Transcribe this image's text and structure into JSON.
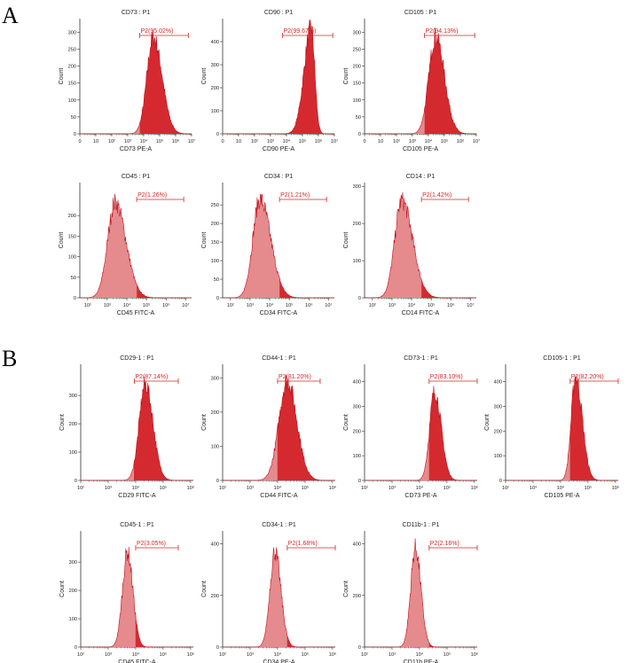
{
  "panels": [
    {
      "letter": "A"
    },
    {
      "letter": "B"
    }
  ],
  "colors": {
    "fill_ungated": "#e58a8d",
    "fill_gated": "#d42a2f",
    "outline": "#c0121a",
    "gate": "#d42828",
    "axis": "#333333"
  },
  "chart_data": [
    {
      "type": "area",
      "panel": "A",
      "title": "CD73 : P1",
      "xlabel": "CD73 PE-A",
      "ylabel": "Count",
      "xscale": "log",
      "xticks": [
        "0",
        "10",
        "10²",
        "10³",
        "10⁴",
        "10⁵",
        "10⁶",
        "10⁷"
      ],
      "xlim": [
        0,
        7
      ],
      "yticks": [
        0,
        50,
        100,
        150,
        200,
        250,
        300
      ],
      "ylim": [
        0,
        340
      ],
      "gate": {
        "label": "P2(95.02%)",
        "range": [
          3.75,
          6.8
        ]
      },
      "peak": {
        "center": 4.6,
        "height": 285,
        "width_left": 0.4,
        "width_right": 0.55
      }
    },
    {
      "type": "area",
      "panel": "A",
      "title": "CD90 : P1",
      "xlabel": "CD90 PE-A",
      "ylabel": "Count",
      "xscale": "log",
      "xticks": [
        "0",
        "10",
        "10²",
        "10³",
        "10⁴",
        "10⁵",
        "10⁶",
        "10⁷"
      ],
      "xlim": [
        0,
        7
      ],
      "yticks": [
        0,
        100,
        200,
        300,
        400
      ],
      "ylim": [
        0,
        500
      ],
      "gate": {
        "label": "P2(99.67%)",
        "range": [
          3.75,
          6.9
        ]
      },
      "peak": {
        "center": 5.55,
        "height": 460,
        "width_left": 0.45,
        "width_right": 0.22
      }
    },
    {
      "type": "area",
      "panel": "A",
      "title": "CD105 : P1",
      "xlabel": "CD105 PE-A",
      "ylabel": "Count",
      "xscale": "log",
      "xticks": [
        "0",
        "10",
        "10²",
        "10³",
        "10⁴",
        "10⁵",
        "10⁶",
        "10⁷"
      ],
      "xlim": [
        0,
        7
      ],
      "yticks": [
        0,
        50,
        100,
        150,
        200,
        250,
        300
      ],
      "ylim": [
        0,
        340
      ],
      "gate": {
        "label": "P2(94.13%)",
        "range": [
          3.75,
          6.9
        ]
      },
      "peak": {
        "center": 4.45,
        "height": 288,
        "width_left": 0.42,
        "width_right": 0.55
      }
    },
    {
      "type": "area",
      "panel": "A",
      "title": "CD45 : P1",
      "xlabel": "CD45 FITC-A",
      "ylabel": "Count",
      "xscale": "log",
      "xticks": [
        "10²",
        "10³",
        "10⁴",
        "10⁵",
        "10⁶",
        "10⁷"
      ],
      "xlim": [
        1.6,
        7.3
      ],
      "yticks": [
        0,
        50,
        100,
        150,
        200
      ],
      "ylim": [
        0,
        280
      ],
      "gate": {
        "label": "P2(1.26%)",
        "range": [
          4.5,
          6.9
        ]
      },
      "peak": {
        "center": 3.4,
        "height": 232,
        "width_left": 0.38,
        "width_right": 0.55
      }
    },
    {
      "type": "area",
      "panel": "A",
      "title": "CD34 : P1",
      "xlabel": "CD34 FITC-A",
      "ylabel": "Count",
      "xscale": "log",
      "xticks": [
        "10²",
        "10³",
        "10⁴",
        "10⁵",
        "10⁶",
        "10⁷"
      ],
      "xlim": [
        1.6,
        7.3
      ],
      "yticks": [
        0,
        50,
        100,
        150,
        200,
        250
      ],
      "ylim": [
        0,
        310
      ],
      "gate": {
        "label": "P2(1.21%)",
        "range": [
          4.5,
          6.9
        ]
      },
      "peak": {
        "center": 3.5,
        "height": 265,
        "width_left": 0.36,
        "width_right": 0.55
      }
    },
    {
      "type": "area",
      "panel": "A",
      "title": "CD14 : P1",
      "xlabel": "CD14 FITC-A",
      "ylabel": "Count",
      "xscale": "log",
      "xticks": [
        "10²",
        "10³",
        "10⁴",
        "10⁵",
        "10⁶",
        "10⁷"
      ],
      "xlim": [
        1.6,
        7.3
      ],
      "yticks": [
        0,
        100,
        200,
        300
      ],
      "ylim": [
        0,
        310
      ],
      "gate": {
        "label": "P2(1.42%)",
        "range": [
          4.5,
          6.9
        ]
      },
      "peak": {
        "center": 3.5,
        "height": 262,
        "width_left": 0.36,
        "width_right": 0.55
      }
    },
    {
      "type": "area",
      "panel": "B",
      "title": "CD29-1 : P1",
      "xlabel": "CD29 FITC-A",
      "ylabel": "Count",
      "xscale": "log",
      "xticks": [
        "10²",
        "10³",
        "10⁴",
        "10⁵",
        "10⁶"
      ],
      "xlim": [
        2.0,
        6.1
      ],
      "yticks": [
        0,
        100,
        200,
        300
      ],
      "ylim": [
        0,
        410
      ],
      "gate": {
        "label": "P2(87.14%)",
        "range": [
          3.95,
          5.55
        ]
      },
      "peak": {
        "center": 4.35,
        "height": 340,
        "width_left": 0.22,
        "width_right": 0.28
      }
    },
    {
      "type": "area",
      "panel": "B",
      "title": "CD44-1 : P1",
      "xlabel": "CD44 FITC-A",
      "ylabel": "Count",
      "xscale": "log",
      "xticks": [
        "10²",
        "10³",
        "10⁴",
        "10⁵",
        "10⁶"
      ],
      "xlim": [
        2.0,
        6.1
      ],
      "yticks": [
        0,
        100,
        200,
        300
      ],
      "ylim": [
        0,
        340
      ],
      "gate": {
        "label": "P2(81.20%)",
        "range": [
          4.0,
          5.55
        ]
      },
      "peak": {
        "center": 4.35,
        "height": 292,
        "width_left": 0.3,
        "width_right": 0.35
      }
    },
    {
      "type": "area",
      "panel": "B",
      "title": "CD73-1 : P1",
      "xlabel": "CD73 PE-A",
      "ylabel": "Count",
      "xscale": "log",
      "xticks": [
        "10²",
        "10³",
        "10⁴",
        "10⁵",
        "10⁶"
      ],
      "xlim": [
        2.0,
        6.1
      ],
      "yticks": [
        0,
        100,
        200,
        300,
        400
      ],
      "ylim": [
        0,
        470
      ],
      "gate": {
        "label": "P2(83.10%)",
        "range": [
          4.35,
          6.1
        ]
      },
      "peak": {
        "center": 4.55,
        "height": 360,
        "width_left": 0.18,
        "width_right": 0.24
      }
    },
    {
      "type": "area",
      "panel": "B",
      "title": "CD105-1 : P1",
      "xlabel": "CD105 PE-A",
      "ylabel": "Count",
      "xscale": "log",
      "xticks": [
        "10²",
        "10³",
        "10⁴",
        "10⁵",
        "10⁶"
      ],
      "xlim": [
        2.0,
        6.1
      ],
      "yticks": [
        0,
        100,
        200,
        300,
        400
      ],
      "ylim": [
        0,
        470
      ],
      "gate": {
        "label": "P2(82.20%)",
        "range": [
          4.35,
          6.1
        ]
      },
      "peak": {
        "center": 4.55,
        "height": 420,
        "width_left": 0.16,
        "width_right": 0.24
      }
    },
    {
      "type": "area",
      "panel": "B",
      "title": "CD45-1 : P1",
      "xlabel": "CD45 FITC-A",
      "ylabel": "Count",
      "xscale": "log",
      "xticks": [
        "10²",
        "10³",
        "10⁴",
        "10⁵",
        "10⁶"
      ],
      "xlim": [
        2.0,
        6.1
      ],
      "yticks": [
        0,
        100,
        200,
        300
      ],
      "ylim": [
        0,
        410
      ],
      "gate": {
        "label": "P2(3.05%)",
        "range": [
          4.0,
          5.55
        ]
      },
      "peak": {
        "center": 3.7,
        "height": 335,
        "width_left": 0.18,
        "width_right": 0.2
      }
    },
    {
      "type": "area",
      "panel": "B",
      "title": "CD34-1 : P1",
      "xlabel": "CD34 PE-A",
      "ylabel": "Count",
      "xscale": "log",
      "xticks": [
        "10²",
        "10³",
        "10⁴",
        "10⁵",
        "10⁶"
      ],
      "xlim": [
        2.0,
        6.1
      ],
      "yticks": [
        0,
        200,
        400
      ],
      "ylim": [
        0,
        450
      ],
      "gate": {
        "label": "P2(1.68%)",
        "range": [
          4.35,
          6.1
        ]
      },
      "peak": {
        "center": 3.9,
        "height": 370,
        "width_left": 0.18,
        "width_right": 0.22
      }
    },
    {
      "type": "area",
      "panel": "B",
      "title": "CD11b-1 : P1",
      "xlabel": "CD11b PE-A",
      "ylabel": "Count",
      "xscale": "log",
      "xticks": [
        "10²",
        "10³",
        "10⁴",
        "10⁵",
        "10⁶"
      ],
      "xlim": [
        2.0,
        6.1
      ],
      "yticks": [
        0,
        200,
        400
      ],
      "ylim": [
        0,
        450
      ],
      "gate": {
        "label": "P2(2.16%)",
        "range": [
          4.35,
          6.1
        ]
      },
      "peak": {
        "center": 3.85,
        "height": 385,
        "width_left": 0.17,
        "width_right": 0.2
      }
    }
  ]
}
